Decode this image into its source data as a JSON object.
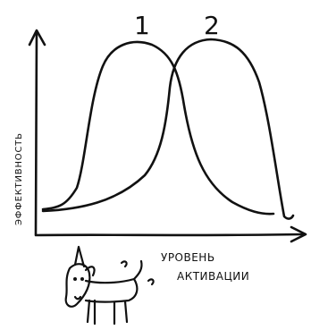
{
  "diagram": {
    "y_axis_label": "ЭФФЕКТИВНОСТЬ",
    "x_axis_label_line1": "УРОВЕНЬ",
    "x_axis_label_line2": "АКТИВАЦИИ",
    "curve_1_label": "1",
    "curve_2_label": "2"
  },
  "illustration": {
    "icon": "dog-sketch-icon"
  }
}
